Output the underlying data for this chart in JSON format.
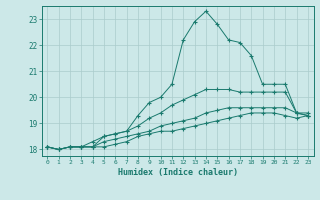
{
  "title": "",
  "xlabel": "Humidex (Indice chaleur)",
  "bg_color": "#cce8e8",
  "line_color": "#1a7a6e",
  "grid_color": "#aacccc",
  "xlim": [
    -0.5,
    23.5
  ],
  "ylim": [
    17.75,
    23.5
  ],
  "xticks": [
    0,
    1,
    2,
    3,
    4,
    5,
    6,
    7,
    8,
    9,
    10,
    11,
    12,
    13,
    14,
    15,
    16,
    17,
    18,
    19,
    20,
    21,
    22,
    23
  ],
  "yticks": [
    18,
    19,
    20,
    21,
    22,
    23
  ],
  "line1_x": [
    0,
    1,
    2,
    3,
    4,
    5,
    6,
    7,
    8,
    9,
    10,
    11,
    12,
    13,
    14,
    15,
    16,
    17,
    18,
    19,
    20,
    21,
    22,
    23
  ],
  "line1_y": [
    18.1,
    18.0,
    18.1,
    18.1,
    18.1,
    18.5,
    18.6,
    18.7,
    19.3,
    19.8,
    20.0,
    20.5,
    22.2,
    22.9,
    23.3,
    22.8,
    22.2,
    22.1,
    21.6,
    20.5,
    20.5,
    20.5,
    19.4,
    19.4
  ],
  "line2_x": [
    0,
    1,
    2,
    3,
    4,
    5,
    6,
    7,
    8,
    9,
    10,
    11,
    12,
    13,
    14,
    15,
    16,
    17,
    18,
    19,
    20,
    21,
    22,
    23
  ],
  "line2_y": [
    18.1,
    18.0,
    18.1,
    18.1,
    18.3,
    18.5,
    18.6,
    18.7,
    18.9,
    19.2,
    19.4,
    19.7,
    19.9,
    20.1,
    20.3,
    20.3,
    20.3,
    20.2,
    20.2,
    20.2,
    20.2,
    20.2,
    19.4,
    19.3
  ],
  "line3_x": [
    0,
    1,
    2,
    3,
    4,
    5,
    6,
    7,
    8,
    9,
    10,
    11,
    12,
    13,
    14,
    15,
    16,
    17,
    18,
    19,
    20,
    21,
    22,
    23
  ],
  "line3_y": [
    18.1,
    18.0,
    18.1,
    18.1,
    18.1,
    18.3,
    18.4,
    18.5,
    18.6,
    18.7,
    18.9,
    19.0,
    19.1,
    19.2,
    19.4,
    19.5,
    19.6,
    19.6,
    19.6,
    19.6,
    19.6,
    19.6,
    19.4,
    19.3
  ],
  "line4_x": [
    0,
    1,
    2,
    3,
    4,
    5,
    6,
    7,
    8,
    9,
    10,
    11,
    12,
    13,
    14,
    15,
    16,
    17,
    18,
    19,
    20,
    21,
    22,
    23
  ],
  "line4_y": [
    18.1,
    18.0,
    18.1,
    18.1,
    18.1,
    18.1,
    18.2,
    18.3,
    18.5,
    18.6,
    18.7,
    18.7,
    18.8,
    18.9,
    19.0,
    19.1,
    19.2,
    19.3,
    19.4,
    19.4,
    19.4,
    19.3,
    19.2,
    19.3
  ]
}
